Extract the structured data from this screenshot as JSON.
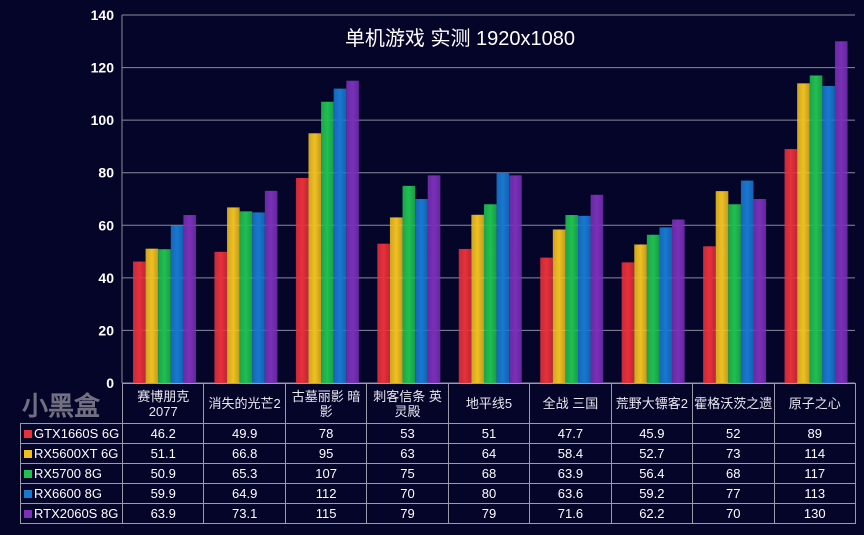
{
  "watermark": "小黑盒",
  "chart_data": {
    "type": "bar",
    "title": "单机游戏  实测    1920x1080",
    "categories": [
      "赛博朋克2077",
      "消失的光芒2",
      "古墓丽影 暗影",
      "刺客信条 英灵殿",
      "地平线5",
      "全战 三国",
      "荒野大镖客2",
      "霍格沃茨之遗",
      "原子之心"
    ],
    "ylim": [
      0,
      140
    ],
    "yticks": [
      0,
      20,
      40,
      60,
      80,
      100,
      120,
      140
    ],
    "grid": true,
    "legend": "data-table-bottom",
    "series": [
      {
        "name": "GTX1660S 6G",
        "color": "#e8303a",
        "values": [
          46.2,
          49.9,
          78,
          53,
          51,
          47.7,
          45.9,
          52,
          89
        ]
      },
      {
        "name": "RX5600XT 6G",
        "color": "#f0c020",
        "values": [
          51.1,
          66.8,
          95,
          63,
          64,
          58.4,
          52.7,
          73,
          114
        ]
      },
      {
        "name": "RX5700 8G",
        "color": "#1fc050",
        "values": [
          50.9,
          65.3,
          107,
          75,
          68,
          63.9,
          56.4,
          68,
          117
        ]
      },
      {
        "name": "RX6600 8G",
        "color": "#1878d0",
        "values": [
          59.9,
          64.9,
          112,
          70,
          80,
          63.6,
          59.2,
          77,
          113
        ]
      },
      {
        "name": "RTX2060S 8G",
        "color": "#7a30b8",
        "values": [
          63.9,
          73.1,
          115,
          79,
          79,
          71.6,
          62.2,
          70,
          130
        ]
      }
    ]
  }
}
